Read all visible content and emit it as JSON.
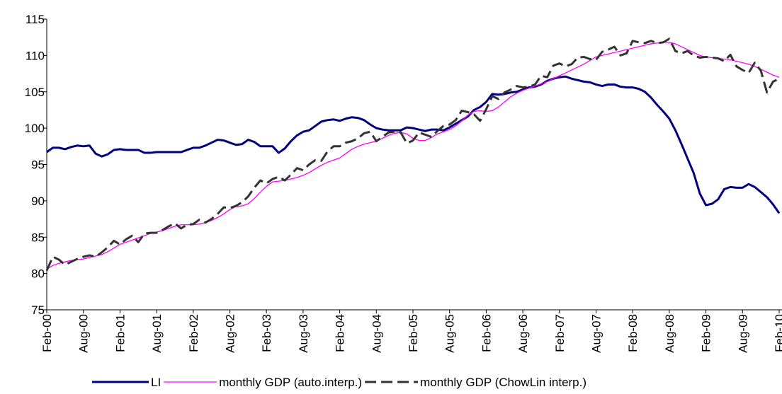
{
  "chart_data": {
    "type": "line",
    "categories": [
      "Feb-00",
      null,
      null,
      null,
      null,
      null,
      "Aug-00",
      null,
      null,
      null,
      null,
      null,
      "Feb-01",
      null,
      null,
      null,
      null,
      null,
      "Aug-01",
      null,
      null,
      null,
      null,
      null,
      "Feb-02",
      null,
      null,
      null,
      null,
      null,
      "Aug-02",
      null,
      null,
      null,
      null,
      null,
      "Feb-03",
      null,
      null,
      null,
      null,
      null,
      "Aug-03",
      null,
      null,
      null,
      null,
      null,
      "Feb-04",
      null,
      null,
      null,
      null,
      null,
      "Aug-04",
      null,
      null,
      null,
      null,
      null,
      "Feb-05",
      null,
      null,
      null,
      null,
      null,
      "Aug-05",
      null,
      null,
      null,
      null,
      null,
      "Feb-06",
      null,
      null,
      null,
      null,
      null,
      "Aug-06",
      null,
      null,
      null,
      null,
      null,
      "Feb-07",
      null,
      null,
      null,
      null,
      null,
      "Aug-07",
      null,
      null,
      null,
      null,
      null,
      "Feb-08",
      null,
      null,
      null,
      null,
      null,
      "Aug-08",
      null,
      null,
      null,
      null,
      null,
      "Feb-09",
      null,
      null,
      null,
      null,
      null,
      "Aug-09",
      null,
      null,
      null,
      null,
      null,
      "Feb-10"
    ],
    "series": [
      {
        "name": "LI",
        "color": "#000080",
        "dash": false,
        "width": 3,
        "values": [
          96.7,
          97.3,
          97.3,
          97.1,
          97.4,
          97.6,
          97.5,
          97.6,
          96.5,
          96.1,
          96.4,
          97.0,
          97.1,
          97.0,
          97.0,
          97.0,
          96.6,
          96.6,
          96.7,
          96.7,
          96.7,
          96.7,
          96.7,
          97.0,
          97.3,
          97.3,
          97.6,
          98.0,
          98.4,
          98.3,
          98.0,
          97.7,
          97.8,
          98.4,
          98.1,
          97.5,
          97.5,
          97.5,
          96.6,
          97.2,
          98.2,
          99.0,
          99.5,
          99.7,
          100.3,
          100.9,
          101.1,
          101.2,
          101.0,
          101.3,
          101.5,
          101.4,
          101.1,
          100.5,
          100.0,
          99.8,
          99.7,
          99.7,
          99.7,
          100.1,
          100.0,
          99.8,
          99.6,
          99.8,
          99.8,
          99.7,
          100.1,
          100.6,
          101.1,
          101.6,
          102.5,
          102.9,
          103.6,
          104.7,
          104.6,
          104.7,
          104.9,
          105.0,
          105.3,
          105.6,
          105.7,
          106.0,
          106.5,
          106.8,
          107.0,
          107.1,
          106.8,
          106.6,
          106.4,
          106.3,
          106.0,
          105.8,
          106.0,
          106.0,
          105.7,
          105.6,
          105.6,
          105.4,
          105.0,
          104.2,
          103.2,
          102.3,
          101.3,
          99.7,
          97.8,
          95.8,
          93.8,
          91.0,
          89.4,
          89.6,
          90.2,
          91.6,
          91.9,
          91.8,
          91.8,
          92.3,
          91.9,
          91.2,
          90.5,
          89.5,
          88.3
        ]
      },
      {
        "name": "monthly GDP (auto.interp.)",
        "color": "#ff00ff",
        "dash": false,
        "width": 1.3,
        "values": [
          80.6,
          81.1,
          81.4,
          81.6,
          81.8,
          81.9,
          82.0,
          82.2,
          82.4,
          82.6,
          83.0,
          83.5,
          84.0,
          84.3,
          84.6,
          84.9,
          85.2,
          85.5,
          85.7,
          85.9,
          86.2,
          86.5,
          86.7,
          86.7,
          86.7,
          86.8,
          87.0,
          87.3,
          87.7,
          88.2,
          88.8,
          89.2,
          89.3,
          89.6,
          90.3,
          91.2,
          92.0,
          92.6,
          92.7,
          92.8,
          93.0,
          93.2,
          93.5,
          93.9,
          94.4,
          94.9,
          95.3,
          95.6,
          95.9,
          96.5,
          97.1,
          97.5,
          97.8,
          98.0,
          98.2,
          98.6,
          99.0,
          99.3,
          99.4,
          99.2,
          98.6,
          98.3,
          98.3,
          98.7,
          99.2,
          99.5,
          99.8,
          100.3,
          101.0,
          101.8,
          102.3,
          102.4,
          102.3,
          102.4,
          102.9,
          103.6,
          104.3,
          104.8,
          105.2,
          105.5,
          105.8,
          106.1,
          106.4,
          106.8,
          107.2,
          107.6,
          108.0,
          108.4,
          108.8,
          109.3,
          109.8,
          110.0,
          110.2,
          110.4,
          110.6,
          110.8,
          111.0,
          111.2,
          111.4,
          111.6,
          111.7,
          111.8,
          111.8,
          111.6,
          111.2,
          110.8,
          110.4,
          110.0,
          109.8,
          109.7,
          109.6,
          109.5,
          109.4,
          109.2,
          109.0,
          108.8,
          108.5,
          108.1,
          107.7,
          107.3,
          107.0
        ]
      },
      {
        "name": "monthly GDP (ChowLin interp.)",
        "color": "#333333",
        "dash": true,
        "width": 3,
        "values": [
          80.4,
          82.3,
          81.9,
          81.2,
          81.6,
          82.0,
          82.3,
          82.5,
          82.3,
          82.9,
          83.6,
          84.5,
          84.0,
          84.7,
          85.2,
          84.3,
          85.5,
          85.6,
          85.6,
          86.0,
          86.5,
          86.9,
          86.2,
          86.7,
          86.8,
          87.4,
          87.0,
          87.5,
          88.2,
          89.1,
          89.0,
          89.3,
          89.8,
          90.6,
          91.8,
          92.8,
          92.4,
          93.0,
          93.3,
          92.8,
          93.6,
          94.5,
          94.2,
          95.0,
          95.6,
          95.5,
          96.8,
          97.5,
          97.5,
          98.0,
          98.2,
          98.6,
          99.3,
          99.5,
          98.2,
          98.8,
          99.4,
          99.5,
          99.4,
          97.9,
          98.3,
          99.4,
          99.1,
          98.8,
          99.6,
          100.3,
          100.5,
          101.1,
          102.4,
          102.2,
          101.9,
          101.0,
          102.6,
          104.4,
          104.0,
          104.9,
          105.3,
          105.8,
          105.6,
          105.7,
          106.0,
          107.2,
          107.0,
          108.6,
          108.9,
          108.5,
          108.8,
          109.7,
          109.8,
          109.5,
          109.4,
          110.5,
          110.8,
          111.2,
          110.0,
          110.3,
          112.0,
          111.8,
          111.7,
          112.0,
          111.7,
          111.8,
          112.3,
          110.6,
          110.3,
          110.6,
          110.0,
          109.7,
          109.8,
          109.7,
          109.6,
          109.2,
          110.1,
          108.5,
          108.0,
          107.6,
          109.0,
          107.9,
          104.9,
          106.4,
          106.8
        ]
      }
    ],
    "ylim": [
      75,
      115
    ],
    "yticks": [
      75,
      80,
      85,
      90,
      95,
      100,
      105,
      110,
      115
    ],
    "grid": false,
    "legend": "bottom"
  }
}
